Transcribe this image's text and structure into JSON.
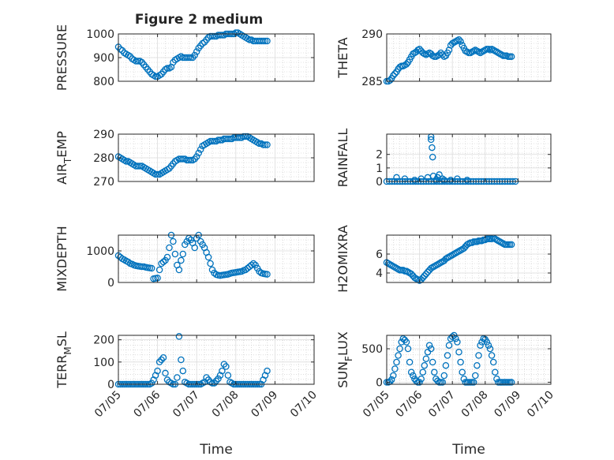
{
  "figure": {
    "title": "Figure 2 medium"
  },
  "x_ticks": [
    "07/05",
    "07/06",
    "07/07",
    "07/08",
    "07/09",
    "07/10"
  ],
  "colors": {
    "marker": "#0072bd",
    "axis": "#262626",
    "grid": "#c8c8c8"
  },
  "chart_data": [
    {
      "type": "scatter",
      "ylabel": "PRESSURE",
      "xlabel": "",
      "title": "Figure 2 medium",
      "xlim": [
        0,
        5
      ],
      "ylim": [
        800,
        1000
      ],
      "yticks": [
        800,
        900,
        1000
      ],
      "ytick_labels": [
        "800",
        "900",
        "1000"
      ],
      "grid": true,
      "x": [
        0.0,
        0.05,
        0.1,
        0.15,
        0.2,
        0.25,
        0.3,
        0.35,
        0.4,
        0.45,
        0.5,
        0.55,
        0.6,
        0.65,
        0.7,
        0.75,
        0.8,
        0.85,
        0.9,
        0.95,
        1.0,
        1.05,
        1.1,
        1.15,
        1.2,
        1.25,
        1.3,
        1.35,
        1.4,
        1.45,
        1.5,
        1.55,
        1.6,
        1.65,
        1.7,
        1.75,
        1.8,
        1.85,
        1.9,
        1.95,
        2.0,
        2.05,
        2.1,
        2.15,
        2.2,
        2.25,
        2.3,
        2.35,
        2.4,
        2.45,
        2.5,
        2.55,
        2.6,
        2.65,
        2.7,
        2.75,
        2.8,
        2.85,
        2.9,
        2.95,
        3.0,
        3.05,
        3.1,
        3.15,
        3.2,
        3.25,
        3.3,
        3.35,
        3.4,
        3.45,
        3.5,
        3.55,
        3.6,
        3.65,
        3.7,
        3.75,
        3.8
      ],
      "y": [
        945,
        935,
        930,
        920,
        915,
        910,
        905,
        895,
        890,
        885,
        885,
        885,
        880,
        870,
        860,
        850,
        840,
        830,
        825,
        820,
        820,
        825,
        830,
        840,
        850,
        855,
        855,
        860,
        880,
        890,
        895,
        900,
        905,
        900,
        900,
        900,
        900,
        900,
        900,
        910,
        925,
        940,
        950,
        960,
        965,
        975,
        985,
        990,
        990,
        990,
        990,
        995,
        995,
        995,
        995,
        1000,
        1000,
        1000,
        1000,
        1000,
        1005,
        1005,
        1000,
        995,
        990,
        985,
        980,
        975,
        975,
        970,
        970,
        970,
        970,
        970,
        970,
        970,
        970
      ]
    },
    {
      "type": "scatter",
      "ylabel": "THETA",
      "xlabel": "",
      "xlim": [
        0,
        5
      ],
      "ylim": [
        285,
        290
      ],
      "yticks": [
        285,
        290
      ],
      "ytick_labels": [
        "285",
        "290"
      ],
      "grid": true,
      "x": [
        0.0,
        0.05,
        0.1,
        0.15,
        0.2,
        0.25,
        0.3,
        0.35,
        0.4,
        0.45,
        0.5,
        0.55,
        0.6,
        0.65,
        0.7,
        0.75,
        0.8,
        0.85,
        0.9,
        0.95,
        1.0,
        1.05,
        1.1,
        1.15,
        1.2,
        1.25,
        1.3,
        1.35,
        1.4,
        1.45,
        1.5,
        1.55,
        1.6,
        1.65,
        1.7,
        1.75,
        1.8,
        1.85,
        1.9,
        1.95,
        2.0,
        2.05,
        2.1,
        2.15,
        2.2,
        2.25,
        2.3,
        2.35,
        2.4,
        2.45,
        2.5,
        2.55,
        2.6,
        2.65,
        2.7,
        2.75,
        2.8,
        2.85,
        2.9,
        2.95,
        3.0,
        3.05,
        3.1,
        3.15,
        3.2,
        3.25,
        3.3,
        3.35,
        3.4,
        3.45,
        3.5,
        3.55,
        3.6,
        3.65,
        3.7,
        3.75,
        3.8
      ],
      "y": [
        285.0,
        285.0,
        285.1,
        285.3,
        285.6,
        285.8,
        286.0,
        286.3,
        286.5,
        286.6,
        286.6,
        286.7,
        286.8,
        287.0,
        287.3,
        287.6,
        287.9,
        288.0,
        288.1,
        288.3,
        288.4,
        288.2,
        288.0,
        287.9,
        287.8,
        287.9,
        288.0,
        287.9,
        287.7,
        287.6,
        287.6,
        287.7,
        287.8,
        288.0,
        287.8,
        287.6,
        287.7,
        288.0,
        288.3,
        288.8,
        289.0,
        289.1,
        289.2,
        289.3,
        289.4,
        289.2,
        288.8,
        288.5,
        288.2,
        288.1,
        288.0,
        288.0,
        288.1,
        288.2,
        288.3,
        288.2,
        288.1,
        288.0,
        288.1,
        288.2,
        288.3,
        288.4,
        288.4,
        288.3,
        288.4,
        288.3,
        288.2,
        288.1,
        288.0,
        287.9,
        287.8,
        287.7,
        287.7,
        287.7,
        287.6,
        287.6,
        287.6
      ]
    },
    {
      "type": "scatter",
      "ylabel": "AIR_TEMP",
      "ylabel_parts": [
        "AIR",
        "T",
        "EMP"
      ],
      "xlabel": "",
      "xlim": [
        0,
        5
      ],
      "ylim": [
        270,
        290
      ],
      "yticks": [
        270,
        280,
        290
      ],
      "ytick_labels": [
        "270",
        "280",
        "290"
      ],
      "grid": true,
      "x": [
        0.0,
        0.05,
        0.1,
        0.15,
        0.2,
        0.25,
        0.3,
        0.35,
        0.4,
        0.45,
        0.5,
        0.55,
        0.6,
        0.65,
        0.7,
        0.75,
        0.8,
        0.85,
        0.9,
        0.95,
        1.0,
        1.05,
        1.1,
        1.15,
        1.2,
        1.25,
        1.3,
        1.35,
        1.4,
        1.45,
        1.5,
        1.55,
        1.6,
        1.65,
        1.7,
        1.75,
        1.8,
        1.85,
        1.9,
        1.95,
        2.0,
        2.05,
        2.1,
        2.15,
        2.2,
        2.25,
        2.3,
        2.35,
        2.4,
        2.45,
        2.5,
        2.55,
        2.6,
        2.65,
        2.7,
        2.75,
        2.8,
        2.85,
        2.9,
        2.95,
        3.0,
        3.05,
        3.1,
        3.15,
        3.2,
        3.25,
        3.3,
        3.35,
        3.4,
        3.45,
        3.5,
        3.55,
        3.6,
        3.65,
        3.7,
        3.75,
        3.8
      ],
      "y": [
        280.5,
        280.0,
        279.5,
        279.0,
        278.5,
        278.5,
        278.0,
        277.5,
        277.0,
        276.5,
        276.5,
        276.5,
        276.5,
        276.0,
        275.5,
        275.0,
        274.5,
        274.0,
        273.5,
        273.0,
        273.0,
        273.0,
        273.5,
        274.0,
        274.5,
        275.0,
        275.5,
        276.5,
        277.5,
        278.5,
        279.0,
        279.5,
        279.5,
        279.5,
        279.5,
        279.0,
        279.0,
        279.0,
        279.0,
        279.5,
        280.5,
        282.0,
        283.5,
        285.0,
        285.5,
        286.0,
        286.5,
        287.0,
        287.0,
        287.0,
        287.0,
        287.5,
        287.5,
        287.5,
        288.0,
        288.0,
        288.0,
        288.0,
        288.0,
        288.5,
        288.5,
        288.5,
        288.5,
        288.5,
        289.0,
        289.0,
        289.0,
        288.5,
        288.0,
        287.5,
        287.0,
        286.5,
        286.0,
        286.0,
        285.5,
        285.5,
        285.5
      ]
    },
    {
      "type": "scatter",
      "ylabel": "RAINFALL",
      "xlabel": "",
      "xlim": [
        0,
        5
      ],
      "ylim": [
        0,
        3.5
      ],
      "yticks": [
        0,
        1,
        2
      ],
      "ytick_labels": [
        "0",
        "1",
        "2"
      ],
      "grid": true,
      "x": [
        0.0,
        0.08,
        0.16,
        0.24,
        0.32,
        0.4,
        0.48,
        0.56,
        0.64,
        0.72,
        0.8,
        0.88,
        0.96,
        1.04,
        1.12,
        1.2,
        1.28,
        1.36,
        1.44,
        1.52,
        1.6,
        1.68,
        1.76,
        1.84,
        1.92,
        2.0,
        2.08,
        2.16,
        2.24,
        2.32,
        2.4,
        2.48,
        2.56,
        2.64,
        2.72,
        2.8,
        2.88,
        2.96,
        3.04,
        3.12,
        3.2,
        3.28,
        3.36,
        3.44,
        3.52,
        3.6,
        3.68,
        3.76,
        3.84,
        3.92,
        0.3,
        0.55,
        0.85,
        1.05,
        1.25,
        1.35,
        1.35,
        1.38,
        1.4,
        1.42,
        1.5,
        1.55,
        1.6,
        1.7,
        1.75,
        1.95,
        2.15,
        2.45
      ],
      "y": [
        0,
        0,
        0,
        0,
        0,
        0,
        0,
        0,
        0,
        0,
        0,
        0,
        0,
        0,
        0,
        0,
        0,
        0,
        0,
        0,
        0,
        0,
        0,
        0,
        0,
        0,
        0,
        0,
        0,
        0,
        0,
        0,
        0,
        0,
        0,
        0,
        0,
        0,
        0,
        0,
        0,
        0,
        0,
        0,
        0,
        0,
        0,
        0,
        0,
        0,
        0.3,
        0.2,
        0.1,
        0.2,
        0.3,
        3.3,
        3.1,
        2.5,
        1.8,
        0.4,
        0.1,
        0.3,
        0.5,
        0.2,
        0.1,
        0.1,
        0.2,
        0.1
      ]
    },
    {
      "type": "scatter",
      "ylabel": "MIXDEPTH",
      "xlabel": "",
      "xlim": [
        0,
        5
      ],
      "ylim": [
        0,
        1500
      ],
      "yticks": [
        0,
        1000
      ],
      "ytick_labels": [
        "0",
        "1000"
      ],
      "grid": true,
      "x": [
        0.0,
        0.05,
        0.1,
        0.15,
        0.2,
        0.25,
        0.3,
        0.35,
        0.4,
        0.45,
        0.5,
        0.55,
        0.6,
        0.65,
        0.7,
        0.75,
        0.8,
        0.85,
        0.9,
        0.95,
        1.0,
        1.05,
        1.1,
        1.15,
        1.2,
        1.25,
        1.3,
        1.35,
        1.4,
        1.45,
        1.5,
        1.55,
        1.6,
        1.65,
        1.7,
        1.75,
        1.8,
        1.85,
        1.9,
        1.95,
        2.0,
        2.05,
        2.1,
        2.15,
        2.2,
        2.25,
        2.3,
        2.35,
        2.4,
        2.45,
        2.5,
        2.55,
        2.6,
        2.65,
        2.7,
        2.75,
        2.8,
        2.85,
        2.9,
        2.95,
        3.0,
        3.05,
        3.1,
        3.15,
        3.2,
        3.25,
        3.3,
        3.35,
        3.4,
        3.45,
        3.5,
        3.55,
        3.6,
        3.65,
        3.7,
        3.75,
        3.8
      ],
      "y": [
        850,
        800,
        750,
        720,
        680,
        650,
        600,
        580,
        550,
        530,
        520,
        510,
        500,
        500,
        480,
        470,
        460,
        450,
        120,
        130,
        140,
        400,
        600,
        650,
        700,
        800,
        1100,
        1500,
        1300,
        900,
        550,
        400,
        700,
        900,
        1200,
        1300,
        1400,
        1350,
        1250,
        1100,
        1400,
        1500,
        1300,
        1200,
        1100,
        950,
        800,
        600,
        400,
        300,
        250,
        230,
        220,
        230,
        240,
        250,
        260,
        280,
        300,
        310,
        320,
        330,
        340,
        350,
        380,
        400,
        450,
        500,
        550,
        600,
        550,
        450,
        350,
        300,
        280,
        270,
        260
      ]
    },
    {
      "type": "scatter",
      "ylabel": "H2OMIXRA",
      "xlabel": "",
      "xlim": [
        0,
        5
      ],
      "ylim": [
        3,
        8
      ],
      "yticks": [
        4,
        6
      ],
      "ytick_labels": [
        "4",
        "6"
      ],
      "grid": true,
      "x": [
        0.0,
        0.05,
        0.1,
        0.15,
        0.2,
        0.25,
        0.3,
        0.35,
        0.4,
        0.45,
        0.5,
        0.55,
        0.6,
        0.65,
        0.7,
        0.75,
        0.8,
        0.85,
        0.9,
        0.95,
        1.0,
        1.05,
        1.1,
        1.15,
        1.2,
        1.25,
        1.3,
        1.35,
        1.4,
        1.45,
        1.5,
        1.55,
        1.6,
        1.65,
        1.7,
        1.75,
        1.8,
        1.85,
        1.9,
        1.95,
        2.0,
        2.05,
        2.1,
        2.15,
        2.2,
        2.25,
        2.3,
        2.35,
        2.4,
        2.45,
        2.5,
        2.55,
        2.6,
        2.65,
        2.7,
        2.75,
        2.8,
        2.85,
        2.9,
        2.95,
        3.0,
        3.05,
        3.1,
        3.15,
        3.2,
        3.25,
        3.3,
        3.35,
        3.4,
        3.45,
        3.5,
        3.55,
        3.6,
        3.65,
        3.7,
        3.75,
        3.8
      ],
      "y": [
        5.1,
        5.0,
        4.9,
        4.8,
        4.7,
        4.6,
        4.5,
        4.4,
        4.3,
        4.3,
        4.3,
        4.2,
        4.2,
        4.1,
        4.0,
        3.9,
        3.7,
        3.5,
        3.4,
        3.3,
        3.2,
        3.3,
        3.5,
        3.7,
        3.9,
        4.1,
        4.3,
        4.5,
        4.6,
        4.7,
        4.8,
        4.9,
        5.0,
        5.1,
        5.2,
        5.3,
        5.5,
        5.6,
        5.7,
        5.8,
        5.9,
        6.0,
        6.1,
        6.2,
        6.3,
        6.4,
        6.5,
        6.6,
        6.8,
        7.0,
        7.1,
        7.2,
        7.2,
        7.3,
        7.3,
        7.3,
        7.4,
        7.4,
        7.4,
        7.5,
        7.5,
        7.6,
        7.6,
        7.6,
        7.6,
        7.7,
        7.6,
        7.5,
        7.4,
        7.3,
        7.2,
        7.1,
        7.0,
        7.0,
        7.0,
        7.0,
        7.0
      ]
    },
    {
      "type": "scatter",
      "ylabel": "TERR_MSL",
      "ylabel_parts": [
        "TERR",
        "M",
        "SL"
      ],
      "xlabel": "Time",
      "xlim": [
        0,
        5
      ],
      "ylim": [
        0,
        220
      ],
      "yticks": [
        0,
        100,
        200
      ],
      "ytick_labels": [
        "0",
        "100",
        "200"
      ],
      "grid": true,
      "x": [
        0.0,
        0.05,
        0.1,
        0.15,
        0.2,
        0.25,
        0.3,
        0.35,
        0.4,
        0.45,
        0.5,
        0.55,
        0.6,
        0.65,
        0.7,
        0.75,
        0.8,
        0.85,
        0.9,
        0.95,
        1.0,
        1.05,
        1.1,
        1.15,
        1.2,
        1.25,
        1.3,
        1.35,
        1.4,
        1.45,
        1.5,
        1.55,
        1.6,
        1.65,
        1.7,
        1.75,
        1.8,
        1.85,
        1.9,
        1.95,
        2.0,
        2.05,
        2.1,
        2.15,
        2.2,
        2.25,
        2.3,
        2.35,
        2.4,
        2.45,
        2.5,
        2.55,
        2.6,
        2.65,
        2.7,
        2.75,
        2.8,
        2.85,
        2.9,
        2.95,
        3.0,
        3.05,
        3.1,
        3.15,
        3.2,
        3.25,
        3.3,
        3.35,
        3.4,
        3.45,
        3.5,
        3.55,
        3.6,
        3.65,
        3.7,
        3.75,
        3.8
      ],
      "y": [
        0,
        0,
        0,
        0,
        0,
        0,
        0,
        0,
        0,
        0,
        0,
        0,
        0,
        0,
        0,
        0,
        0,
        5,
        20,
        40,
        60,
        100,
        110,
        120,
        50,
        20,
        10,
        5,
        0,
        0,
        30,
        215,
        110,
        60,
        10,
        5,
        0,
        0,
        0,
        0,
        0,
        0,
        0,
        5,
        10,
        30,
        20,
        10,
        5,
        5,
        15,
        25,
        40,
        60,
        90,
        80,
        40,
        10,
        5,
        0,
        0,
        0,
        0,
        0,
        0,
        0,
        0,
        0,
        0,
        0,
        0,
        0,
        0,
        0,
        20,
        40,
        60
      ]
    },
    {
      "type": "scatter",
      "ylabel": "SUN_FLUX",
      "ylabel_parts": [
        "SUN",
        "F",
        "LUX"
      ],
      "xlabel": "Time",
      "xlim": [
        0,
        5
      ],
      "ylim": [
        -30,
        700
      ],
      "yticks": [
        0,
        500
      ],
      "ytick_labels": [
        "0",
        "500"
      ],
      "grid": true,
      "x": [
        0.0,
        0.05,
        0.1,
        0.15,
        0.2,
        0.25,
        0.3,
        0.35,
        0.4,
        0.45,
        0.5,
        0.55,
        0.6,
        0.65,
        0.7,
        0.75,
        0.8,
        0.85,
        0.9,
        0.95,
        1.0,
        1.05,
        1.1,
        1.15,
        1.2,
        1.25,
        1.3,
        1.35,
        1.4,
        1.45,
        1.5,
        1.55,
        1.6,
        1.65,
        1.7,
        1.75,
        1.8,
        1.85,
        1.9,
        1.95,
        2.0,
        2.05,
        2.1,
        2.15,
        2.2,
        2.25,
        2.3,
        2.35,
        2.4,
        2.45,
        2.5,
        2.55,
        2.6,
        2.65,
        2.7,
        2.75,
        2.8,
        2.85,
        2.9,
        2.95,
        3.0,
        3.05,
        3.1,
        3.15,
        3.2,
        3.25,
        3.3,
        3.35,
        3.4,
        3.45,
        3.5,
        3.55,
        3.6,
        3.65,
        3.7,
        3.75,
        3.8
      ],
      "y": [
        0,
        0,
        10,
        40,
        100,
        200,
        300,
        400,
        500,
        600,
        650,
        630,
        600,
        500,
        300,
        150,
        100,
        50,
        20,
        0,
        0,
        50,
        150,
        250,
        350,
        450,
        550,
        500,
        300,
        150,
        50,
        20,
        0,
        0,
        0,
        100,
        250,
        400,
        550,
        650,
        680,
        700,
        650,
        600,
        450,
        300,
        150,
        50,
        0,
        0,
        0,
        0,
        0,
        0,
        100,
        250,
        400,
        550,
        600,
        650,
        640,
        600,
        550,
        500,
        400,
        300,
        150,
        50,
        0,
        0,
        0,
        0,
        0,
        0,
        0,
        0,
        0
      ]
    }
  ]
}
